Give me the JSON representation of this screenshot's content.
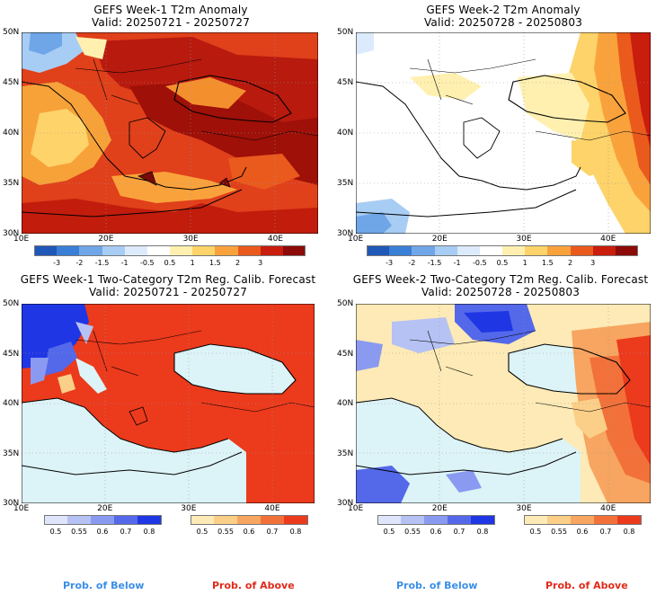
{
  "panels": [
    {
      "line1": "GEFS Week-1 T2m Anomaly",
      "line2": "Valid: 20250721 - 20250727"
    },
    {
      "line1": "GEFS Week-2 T2m Anomaly",
      "line2": "Valid: 20250728 - 20250803"
    },
    {
      "line1": "GEFS Week-1 Two-Category T2m Reg. Calib. Forecast",
      "line2": "Valid: 20250721 - 20250727"
    },
    {
      "line1": "GEFS Week-2 Two-Category T2m Reg. Calib. Forecast",
      "line2": "Valid: 20250728 - 20250803"
    }
  ],
  "axes": {
    "lat_labels": [
      "50N",
      "45N",
      "40N",
      "35N",
      "30N"
    ],
    "lon_labels": [
      "10E",
      "20E",
      "30E",
      "40E"
    ]
  },
  "anomaly_legend": {
    "labels": [
      "-3",
      "-2",
      "-1.5",
      "-1",
      "-0.5",
      "0.5",
      "1",
      "1.5",
      "2",
      "3"
    ],
    "colors": [
      "#1f58b8",
      "#3a7fd6",
      "#6fa6e8",
      "#a8cdf4",
      "#dcebfb",
      "#ffffff",
      "#fff0b0",
      "#fdd36a",
      "#f9a23c",
      "#ea5a1c",
      "#c91d0e",
      "#8c0a08"
    ]
  },
  "prob_legend": {
    "labels": [
      "0.5",
      "0.55",
      "0.6",
      "0.7",
      "0.8"
    ],
    "below_colors": [
      "#dfe6fb",
      "#b6c2f4",
      "#8a9af0",
      "#5468ea",
      "#1f36e4"
    ],
    "above_colors": [
      "#fdeab6",
      "#fbcf88",
      "#f7a560",
      "#f2713a",
      "#ec3a1c"
    ],
    "below_caption": "Prob. of Below",
    "above_caption": "Prob. of Above",
    "below_caption_color": "#3a8ee6",
    "above_caption_color": "#e02a1a"
  },
  "colors": {
    "sea": "#dcf3f7",
    "land_white": "#ffffff",
    "grid": "#888888"
  }
}
